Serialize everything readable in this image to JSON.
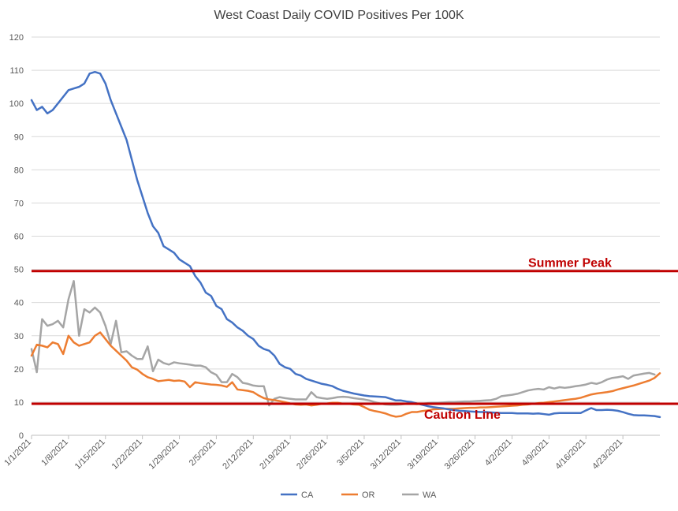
{
  "chart_data": {
    "type": "line",
    "title": "West Coast Daily COVID Positives Per 100K",
    "xlabel": "",
    "ylabel": "",
    "ylim": [
      0,
      120
    ],
    "yticks": [
      0,
      10,
      20,
      30,
      40,
      50,
      60,
      70,
      80,
      90,
      100,
      110,
      120
    ],
    "x_start": "1/1/2021",
    "x_end": "4/25/2021",
    "x_tick_labels": [
      "1/1/2021",
      "1/8/2021",
      "1/15/2021",
      "1/22/2021",
      "1/29/2021",
      "2/5/2021",
      "2/12/2021",
      "2/19/2021",
      "2/26/2021",
      "3/5/2021",
      "3/12/2021",
      "3/19/2021",
      "3/26/2021",
      "4/2/2021",
      "4/9/2021",
      "4/16/2021",
      "4/23/2021"
    ],
    "grid": true,
    "legend_position": "bottom",
    "reference_lines": [
      {
        "label": "Summer Peak",
        "value": 49.5,
        "color": "#c00000"
      },
      {
        "label": "Caution Line",
        "value": 9.5,
        "color": "#c00000"
      }
    ],
    "series": [
      {
        "name": "CA",
        "color": "#4472c4",
        "values": [
          101,
          98,
          99,
          97,
          98,
          100,
          102,
          104,
          104.5,
          105,
          106,
          109,
          109.5,
          109,
          106,
          101,
          97,
          93,
          89,
          83,
          77,
          72,
          67,
          63,
          61,
          57,
          56,
          55,
          53,
          52,
          51,
          48,
          46,
          43,
          42,
          39,
          38,
          35,
          34,
          32.5,
          31.5,
          30,
          29,
          27,
          26,
          25.5,
          24,
          21.5,
          20.5,
          20,
          18.5,
          18,
          17,
          16.5,
          16,
          15.5,
          15.2,
          14.8,
          14,
          13.4,
          13,
          12.6,
          12.3,
          12,
          11.8,
          11.7,
          11.6,
          11.5,
          11,
          10.5,
          10.5,
          10.2,
          10,
          9.6,
          9.2,
          8.8,
          8.5,
          8.3,
          8.1,
          7.8,
          7.6,
          7.4,
          7.3,
          7.2,
          7.1,
          7,
          7,
          6.9,
          6.8,
          6.7,
          6.7,
          6.7,
          6.6,
          6.6,
          6.6,
          6.5,
          6.6,
          6.4,
          6.2,
          6.6,
          6.7,
          6.7,
          6.7,
          6.7,
          6.7,
          7.5,
          8.2,
          7.6,
          7.6,
          7.7,
          7.6,
          7.4,
          7,
          6.5,
          6.1,
          6,
          6,
          5.9,
          5.8,
          5.5
        ]
      },
      {
        "name": "OR",
        "color": "#ed7d31",
        "values": [
          24,
          27.3,
          27,
          26.5,
          28,
          27.5,
          24.5,
          30,
          28,
          27,
          27.5,
          28,
          30,
          31,
          29,
          27,
          25.5,
          24,
          22.5,
          20.5,
          19.8,
          18.5,
          17.5,
          17,
          16.3,
          16.5,
          16.7,
          16.4,
          16.5,
          16.2,
          14.5,
          16,
          15.7,
          15.5,
          15.3,
          15.2,
          15,
          14.6,
          16,
          13.8,
          13.6,
          13.4,
          13,
          12,
          11.2,
          10.8,
          10.6,
          10.3,
          10,
          9.6,
          9.3,
          9.2,
          9.3,
          9,
          9.2,
          9.5,
          9.6,
          9.8,
          9.8,
          9.5,
          9.5,
          9.3,
          9.2,
          8.5,
          7.7,
          7.3,
          7,
          6.6,
          6,
          5.6,
          5.8,
          6.5,
          7,
          7,
          7.3,
          7.5,
          7.8,
          7.9,
          8,
          8,
          8,
          8.1,
          8.2,
          8.3,
          8.3,
          8.4,
          8.4,
          8.5,
          8.6,
          8.7,
          8.8,
          8.9,
          9,
          9.2,
          9.3,
          9.5,
          9.7,
          9.8,
          10,
          10.2,
          10.4,
          10.6,
          10.8,
          11,
          11.3,
          11.8,
          12.3,
          12.6,
          12.8,
          13,
          13.3,
          13.8,
          14.2,
          14.6,
          15,
          15.5,
          16,
          16.5,
          17.3,
          18.7
        ]
      },
      {
        "name": "WA",
        "color": "#a5a5a5",
        "values": [
          26,
          19,
          35,
          33,
          33.5,
          34.5,
          32.5,
          41,
          46.5,
          30,
          38,
          37,
          38.5,
          37,
          33,
          27.5,
          34.5,
          25,
          25.3,
          24,
          23,
          23,
          26.8,
          19.3,
          22.8,
          21.8,
          21.3,
          22,
          21.7,
          21.5,
          21.3,
          21,
          21,
          20.5,
          19,
          18.2,
          16,
          16,
          18.5,
          17.5,
          15.8,
          15.5,
          15,
          14.8,
          14.8,
          9,
          11,
          11.5,
          11.2,
          11,
          10.8,
          10.8,
          10.8,
          13,
          11.5,
          11.2,
          11,
          11.2,
          11.5,
          11.6,
          11.5,
          11.2,
          11,
          10.8,
          10.5,
          10,
          9.6,
          9.3,
          9.2,
          9.2,
          9.3,
          9.5,
          9.5,
          9.4,
          9.5,
          9.7,
          9.8,
          9.8,
          9.9,
          10,
          10,
          10.1,
          10.2,
          10.2,
          10.3,
          10.4,
          10.5,
          10.6,
          11,
          11.8,
          12,
          12.2,
          12.5,
          13,
          13.5,
          13.8,
          14,
          13.8,
          14.5,
          14.1,
          14.5,
          14.3,
          14.5,
          14.8,
          15,
          15.3,
          15.8,
          15.5,
          16,
          16.8,
          17.3,
          17.5,
          17.8,
          17,
          18,
          18.3,
          18.6,
          18.8,
          18.3
        ]
      }
    ]
  }
}
